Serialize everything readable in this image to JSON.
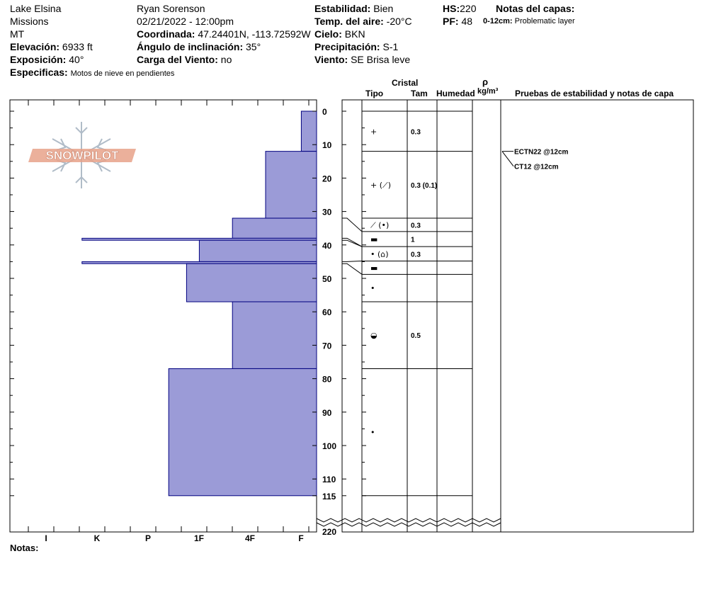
{
  "header": {
    "location": "Lake Elsina",
    "range": "Missions",
    "state": "MT",
    "elevation_label": "Elevación:",
    "elevation_value": "6933 ft",
    "aspect_label": "Exposición:",
    "aspect_value": "40°",
    "specifics_label": "Especificas:",
    "specifics_value": "Motos de nieve en pendientes",
    "observer": "Ryan Sorenson",
    "datetime": "02/21/2022 - 12:00pm",
    "coord_label": "Coordinada:",
    "coord_value": "47.24401N, -113.72592W",
    "incline_label": "Ángulo de inclinación:",
    "incline_value": "35°",
    "wind_load_label": "Carga del Viento:",
    "wind_load_value": "no",
    "stability_label": "Estabilidad:",
    "stability_value": "Bien",
    "air_temp_label": "Temp. del aire:",
    "air_temp_value": "-20°C",
    "sky_label": "Cielo:",
    "sky_value": "BKN",
    "precip_label": "Precipitación:",
    "precip_value": "S-1",
    "wind_label": "Viento:",
    "wind_value": "SE  Brisa leve",
    "hs_label": "HS:",
    "hs_value": "220",
    "pf_label": "PF:",
    "pf_value": "48",
    "layer_notes_label": "Notas del capas:",
    "layer_note_range": "0-12cm:",
    "layer_note_text": "Problematic layer"
  },
  "columns": {
    "crystal": "Cristal",
    "type": "Tipo",
    "size": "Tam",
    "moisture": "Humedad",
    "rho": "ρ",
    "density_unit": "kg/m³",
    "tests": "Pruebas de estabilidad y notas de capa"
  },
  "logo_text": "SNOWPILOT",
  "notes_label": "Notas:",
  "colors": {
    "fill": "#9b9bd7",
    "stroke": "#00007f",
    "logo": "#e8a28a",
    "snowflake": "#b0bcc8"
  },
  "chart_data": {
    "type": "bar",
    "orientation": "horizontal",
    "y_axis_name": "depth",
    "ylim": [
      0,
      115
    ],
    "y_break": {
      "from": 115,
      "label": "220"
    },
    "y_ticks": [
      0,
      10,
      20,
      30,
      40,
      50,
      60,
      70,
      80,
      90,
      100,
      110,
      115
    ],
    "hardness_scale": [
      "I",
      "K",
      "P",
      "1F",
      "4F",
      "F"
    ],
    "hardness_axis_note": "values in hardness units from right edge; F=0.5,4F=1.5,1F=2.5,P=3.5,K=4.5,I=5.5",
    "layers": [
      {
        "top": 0,
        "bottom": 12,
        "hardness": 0.3,
        "type": "+",
        "size": "0.3"
      },
      {
        "top": 12,
        "bottom": 32,
        "hardness": 1.0,
        "type": "+ (⟋)",
        "size": "0.3 (0.1)"
      },
      {
        "top": 32,
        "bottom": 38,
        "hardness": 1.65,
        "type": "⟋ (•)",
        "size": "0.3"
      },
      {
        "top": 38,
        "bottom": 38.6,
        "hardness": 4.6,
        "type": "▬",
        "size": "1"
      },
      {
        "top": 38.6,
        "bottom": 45,
        "hardness": 2.3,
        "type": "• (⌂)",
        "size": "0.3"
      },
      {
        "top": 45,
        "bottom": 45.6,
        "hardness": 4.6,
        "type": "▬",
        "size": ""
      },
      {
        "top": 45.6,
        "bottom": 57,
        "hardness": 2.55,
        "type": "•",
        "size": ""
      },
      {
        "top": 57,
        "bottom": 77,
        "hardness": 1.65,
        "type": "◒",
        "size": "0.5"
      },
      {
        "top": 77,
        "bottom": 115,
        "hardness": 2.9,
        "type": "•",
        "size": ""
      }
    ],
    "tests": [
      {
        "label": "ECTN22 @12cm",
        "depth": 12
      },
      {
        "label": "CT12 @12cm",
        "depth": 12
      }
    ]
  }
}
